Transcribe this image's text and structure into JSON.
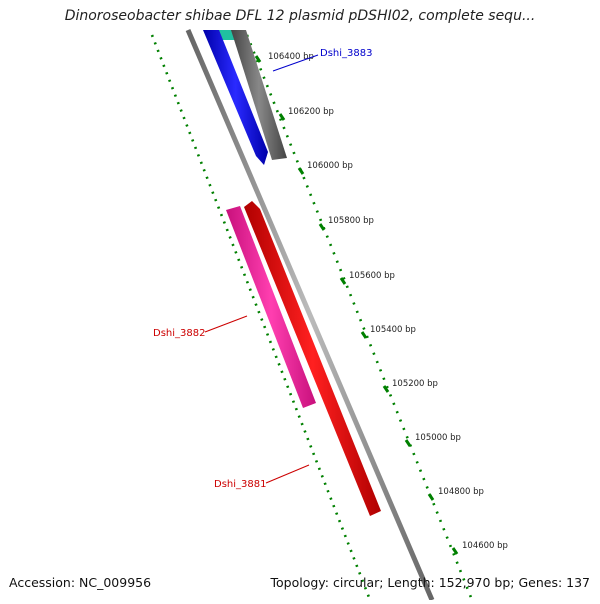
{
  "title": "Dinoroseobacter shibae DFL 12 plasmid pDSHI02, complete sequ...",
  "footer": {
    "accession": "Accession: NC_009956",
    "summary": "Topology: circular; Length: 152,970 bp; Genes: 137"
  },
  "scale_ticks": [
    "106400 bp",
    "106200 bp",
    "106000 bp",
    "105800 bp",
    "105600 bp",
    "105400 bp",
    "105200 bp",
    "105000 bp",
    "104800 bp",
    "104600 bp"
  ],
  "genes": [
    {
      "label": "Dshi_3883",
      "color": "#0000cc",
      "strand": "+"
    },
    {
      "label": "Dshi_3882",
      "color": "#cc0000",
      "strand": "+"
    },
    {
      "label": "Dshi_3881",
      "color": "#cc0000",
      "strand": "+"
    }
  ],
  "colors": {
    "backbone": "#8c8c8c",
    "gc_track": "#008000",
    "gene_blue": "#0000ff",
    "gene_grey": "#666666",
    "gene_teal": "#20c0a0",
    "gene_red": "#ff0000",
    "gene_pink": "#ee2299"
  }
}
